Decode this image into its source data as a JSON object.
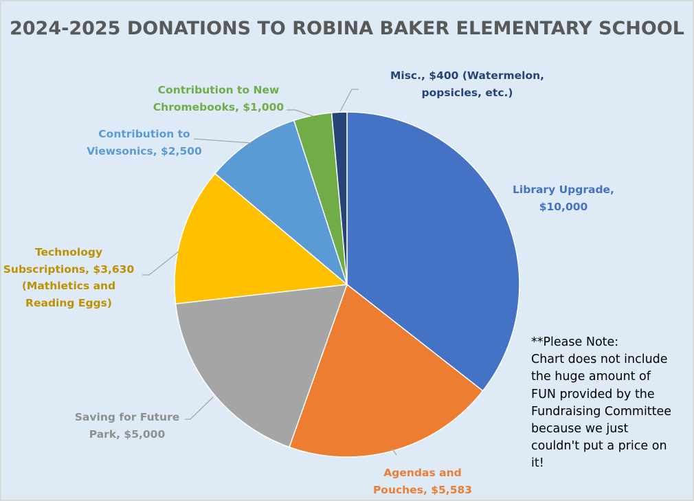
{
  "chart_data": {
    "type": "pie",
    "title": "2024-2025 DONATIONS TO ROBINA BAKER ELEMENTARY SCHOOL",
    "start": "top, clockwise",
    "legend": "none",
    "slices": [
      {
        "category": "Library Upgrade",
        "value": 10000,
        "color": "#4472c4",
        "label_color": "#4472c4",
        "label_lines": [
          "Library Upgrade,",
          "$10,000"
        ]
      },
      {
        "category": "Agendas and Pouches",
        "value": 5583,
        "color": "#ed7d31",
        "label_color": "#ed7d31",
        "label_lines": [
          "Agendas and",
          "Pouches, $5,583"
        ]
      },
      {
        "category": "Saving for Future Park",
        "value": 5000,
        "color": "#a5a5a5",
        "label_color": "#8f8f8f",
        "label_lines": [
          "Saving for Future",
          "Park, $5,000"
        ]
      },
      {
        "category": "Technology Subscriptions (Mathletics and Reading Eggs)",
        "value": 3630,
        "color": "#ffc000",
        "label_color": "#bf9000",
        "label_lines": [
          "Technology",
          "Subscriptions, $3,630",
          "(Mathletics and",
          "Reading Eggs)"
        ]
      },
      {
        "category": "Contribution to Viewsonics",
        "value": 2500,
        "color": "#5b9bd5",
        "label_color": "#5b9bd5",
        "label_lines": [
          "Contribution to",
          "Viewsonics, $2,500"
        ]
      },
      {
        "category": "Contribution to New Chromebooks",
        "value": 1000,
        "color": "#70ad47",
        "label_color": "#70ad47",
        "label_lines": [
          "Contribution to New",
          "Chromebooks, $1,000"
        ]
      },
      {
        "category": "Misc. (Watermelon, popsicles, etc.)",
        "value": 400,
        "color": "#264478",
        "label_color": "#264478",
        "label_lines": [
          "Misc., $400 (Watermelon,",
          "popsicles, etc.)"
        ]
      }
    ],
    "annotation": [
      "**Please Note:",
      "Chart does not include",
      "the huge amount of",
      "FUN provided by the",
      "Fundraising Committee",
      "because we just",
      "couldn't put a price on",
      "it!"
    ]
  }
}
